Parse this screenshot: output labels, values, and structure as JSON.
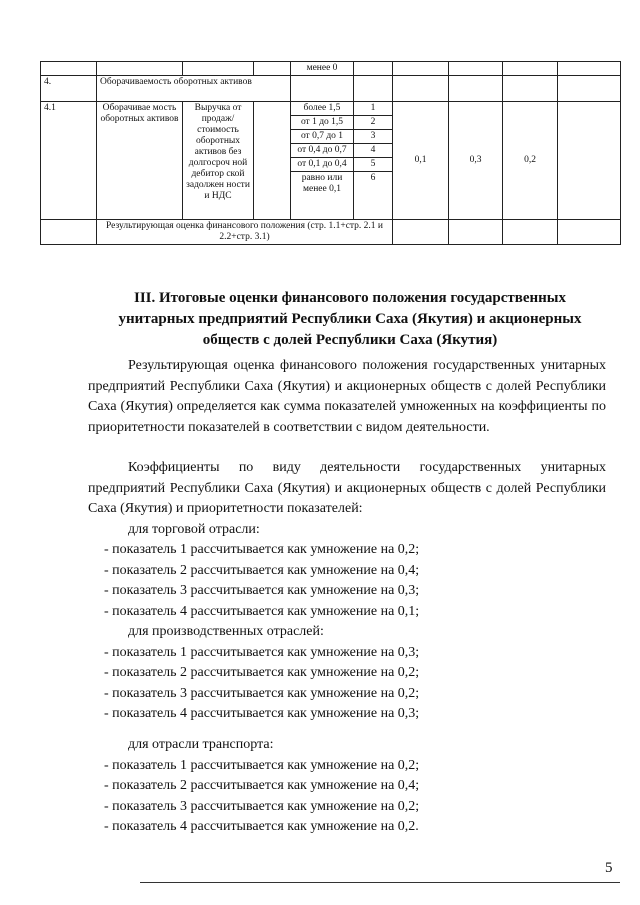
{
  "table": {
    "row_prev": {
      "range": "менее 0"
    },
    "row4": {
      "num": "4.",
      "title": "Оборачиваемость оборотных активов"
    },
    "row41": {
      "num": "4.1",
      "name": "Оборачиваемость оборотных активов",
      "name_display": "Оборачивае мость оборотных активов",
      "formula": "Выручка от продаж/ стоимость оборотных активов без долгосроч ной дебитор ской задолжен ности и НДС",
      "ranges": [
        {
          "range": "более 1,5",
          "score": "1"
        },
        {
          "range": "от 1 до 1,5",
          "score": "2"
        },
        {
          "range": "от 0,7 до 1",
          "score": "3"
        },
        {
          "range": "от 0,4 до 0,7",
          "score": "4"
        },
        {
          "range": "от 0,1 до 0,4",
          "score": "5"
        },
        {
          "range": "равно или менее 0,1",
          "score": "6"
        }
      ],
      "coef1": "0,1",
      "coef2": "0,3",
      "coef3": "0,2"
    },
    "result": "Результирующая оценка финансового положения (стр. 1.1+стр. 2.1 и 2.2+стр. 3.1)"
  },
  "heading": "III. Итоговые оценки финансового положения государственных унитарных предприятий Республики Саха (Якутия) и акционерных обществ с долей Республики Саха (Якутия)",
  "para1": "Результирующая оценка финансового положения государственных унитарных предприятий Республики Саха (Якутия) и акционерных обществ с долей Республики Саха (Якутия) определяется как сумма показателей умноженных на коэффициенты по приоритетности показателей в соответствии с видом деятельности.",
  "para2": "Коэффициенты по виду деятельности государственных унитарных предприятий Республики Саха (Якутия) и акционерных обществ с долей Республики Саха (Якутия) и приоритетности показателей:",
  "groups": [
    {
      "title": "для торговой отрасли:",
      "items": [
        "- показатель 1 рассчитывается как умножение на 0,2;",
        "- показатель 2 рассчитывается как умножение на 0,4;",
        "- показатель 3 рассчитывается как умножение на 0,3;",
        "- показатель 4 рассчитывается как умножение на 0,1;"
      ]
    },
    {
      "title": "для производственных отраслей:",
      "items": [
        "- показатель 1 рассчитывается как умножение на 0,3;",
        "- показатель 2 рассчитывается как умножение на 0,2;",
        "- показатель 3 рассчитывается как умножение на 0,2;",
        "- показатель 4 рассчитывается как умножение на 0,3;"
      ]
    },
    {
      "title": "для отрасли транспорта:",
      "items": [
        "- показатель 1 рассчитывается как умножение на 0,2;",
        "- показатель 2 рассчитывается как умножение на 0,4;",
        "- показатель 3 рассчитывается как умножение на 0,2;",
        "- показатель 4 рассчитывается как умножение на 0,2."
      ]
    }
  ],
  "page_number": "5"
}
